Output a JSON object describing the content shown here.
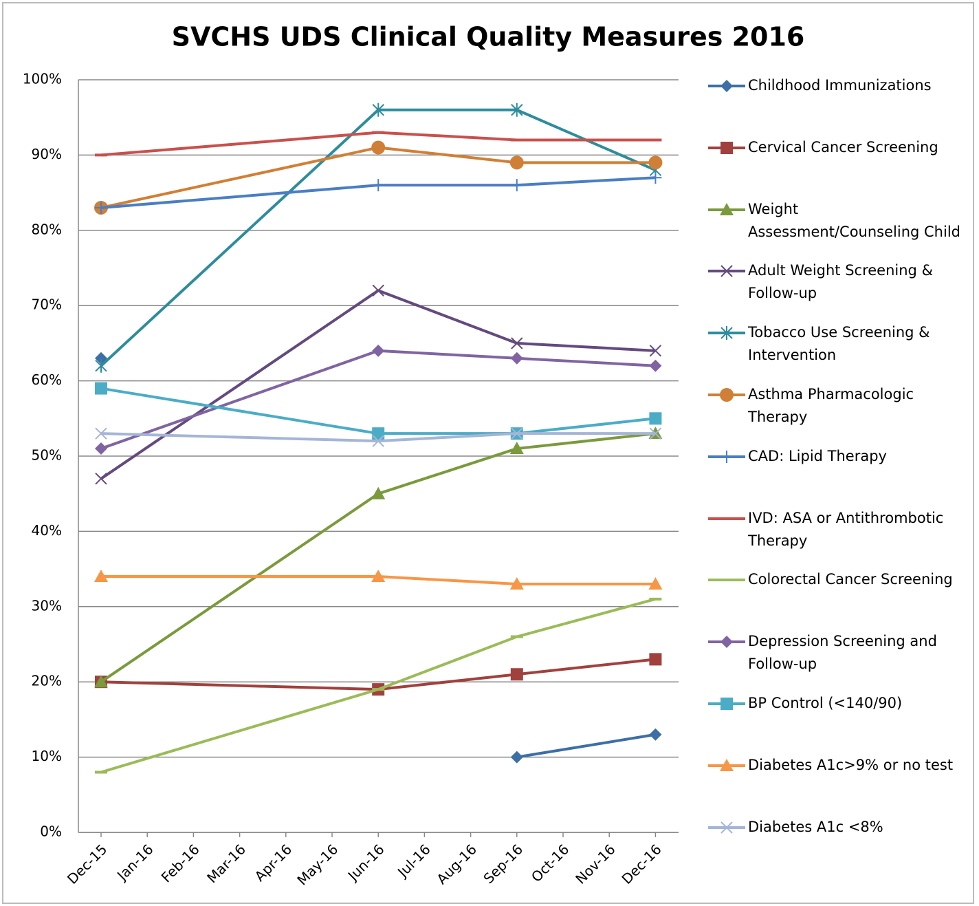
{
  "chart_data": {
    "type": "line",
    "title": "SVCHS UDS Clinical Quality Measures 2016",
    "x": [
      "Dec-15",
      "Jun-16",
      "Sep-16",
      "Dec-16"
    ],
    "xticks": [
      "Dec-15",
      "Jan-16",
      "Feb-16",
      "Mar-16",
      "Apr-16",
      "May-16",
      "Jun-16",
      "Jul-16",
      "Aug-16",
      "Sep-16",
      "Oct-16",
      "Nov-16",
      "Dec-16"
    ],
    "ylim": [
      0,
      100
    ],
    "yticks": [
      {
        "value": 0,
        "label": "0%"
      },
      {
        "value": 10,
        "label": "10%"
      },
      {
        "value": 20,
        "label": "20%"
      },
      {
        "value": 30,
        "label": "30%"
      },
      {
        "value": 40,
        "label": "40%"
      },
      {
        "value": 50,
        "label": "50%"
      },
      {
        "value": 60,
        "label": "60%"
      },
      {
        "value": 70,
        "label": "70%"
      },
      {
        "value": 80,
        "label": "80%"
      },
      {
        "value": 90,
        "label": "90%"
      },
      {
        "value": 100,
        "label": "100%"
      }
    ],
    "grid": true,
    "legend": "right",
    "series": [
      {
        "name": "Childhood Immunizations",
        "color": "#3d6fa6",
        "marker": "diamond",
        "values": [
          63,
          null,
          10,
          13
        ]
      },
      {
        "name": "Cervical Cancer Screening",
        "color": "#a0413d",
        "marker": "square",
        "values": [
          20,
          19,
          21,
          23
        ]
      },
      {
        "name": "Weight Assessment/Counseling Child",
        "color": "#7a9a3c",
        "marker": "triangle",
        "values": [
          20,
          45,
          51,
          53
        ]
      },
      {
        "name": "Adult Weight Screening & Follow-up",
        "color": "#634a7e",
        "marker": "x",
        "values": [
          47,
          72,
          65,
          64
        ]
      },
      {
        "name": "Tobacco Use Screening & Intervention",
        "color": "#2e8c9c",
        "marker": "star",
        "values": [
          62,
          96,
          96,
          88
        ]
      },
      {
        "name": "Asthma Pharmacologic Therapy",
        "color": "#d07f36",
        "marker": "circle",
        "values": [
          83,
          91,
          89,
          89
        ]
      },
      {
        "name": "CAD: Lipid Therapy",
        "color": "#4a7ec4",
        "marker": "plus",
        "values": [
          83,
          86,
          86,
          87
        ]
      },
      {
        "name": "IVD: ASA or Antithrombotic Therapy",
        "color": "#c8504d",
        "marker": "dash",
        "values": [
          90,
          93,
          92,
          92
        ]
      },
      {
        "name": "Colorectal Cancer Screening",
        "color": "#9bbb59",
        "marker": "dash",
        "values": [
          8,
          19,
          26,
          31
        ]
      },
      {
        "name": "Depression Screening and Follow-up",
        "color": "#8064a2",
        "marker": "diamond",
        "values": [
          51,
          64,
          63,
          62
        ]
      },
      {
        "name": "BP Control (<140/90)",
        "color": "#4bacc6",
        "marker": "square",
        "values": [
          59,
          53,
          53,
          55
        ]
      },
      {
        "name": "Diabetes A1c>9% or no test",
        "color": "#f79646",
        "marker": "triangle",
        "values": [
          34,
          34,
          33,
          33
        ]
      },
      {
        "name": "Diabetes A1c <8%",
        "color": "#a5b5d6",
        "marker": "x",
        "values": [
          53,
          52,
          53,
          53
        ]
      }
    ]
  }
}
